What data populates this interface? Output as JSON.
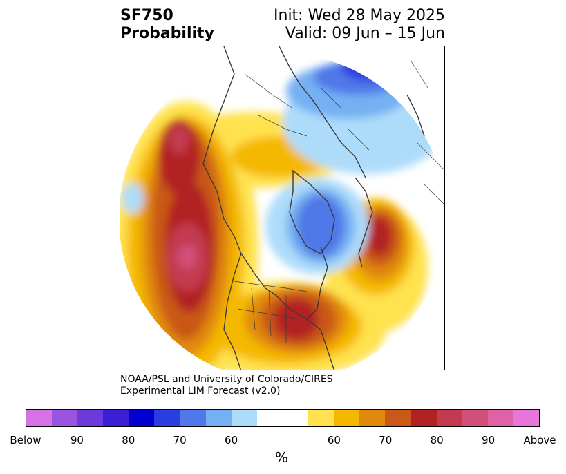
{
  "header": {
    "variable": "SF750",
    "subtitle": "Probability",
    "init": "Init: Wed 28 May 2025",
    "valid": "Valid: 09 Jun – 15 Jun"
  },
  "credit": {
    "line1": "NOAA/PSL and University of Colorado/CIRES",
    "line2": "Experimental LIM Forecast (v2.0)"
  },
  "colorbar": {
    "colors": [
      "#d671e6",
      "#9b54e0",
      "#6c3adb",
      "#3b1fd6",
      "#0000d1",
      "#2a3de0",
      "#4f78e8",
      "#75b0f2",
      "#addcfa",
      "#ffffff",
      "#ffffff",
      "#ffe24d",
      "#f5b800",
      "#e08a0d",
      "#c95819",
      "#b22222",
      "#c23a50",
      "#d1507a",
      "#de62a8",
      "#e876da"
    ],
    "ticks": [
      "Below",
      "90",
      "80",
      "70",
      "60",
      "60",
      "70",
      "80",
      "90",
      "Above"
    ],
    "unit": "%"
  },
  "legend_colors": {
    "cool": [
      "#addcfa",
      "#75b0f2",
      "#4f78e8",
      "#2a3de0",
      "#0000d1"
    ],
    "warm": [
      "#ffe24d",
      "#f5b800",
      "#e08a0d",
      "#c95819",
      "#b22222",
      "#c23a50",
      "#d1507a",
      "#de62a8"
    ]
  }
}
